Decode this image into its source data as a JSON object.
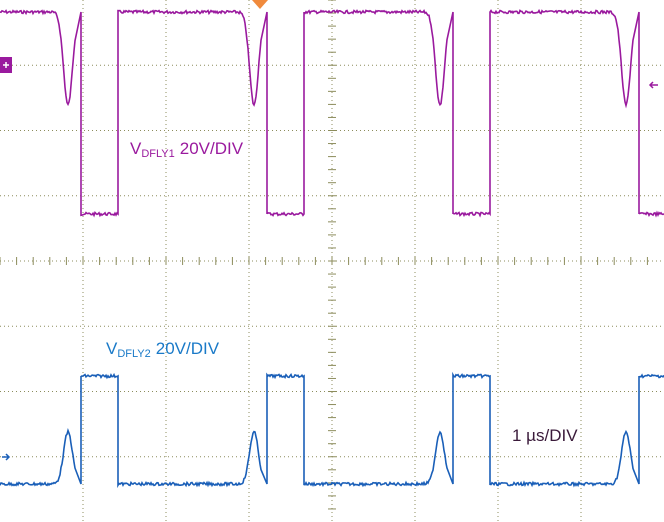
{
  "labels": [
    {
      "main": "V",
      "sub": "DFLY1",
      "rest": "20V/DIV"
    },
    {
      "main": "V",
      "sub": "DFLY2",
      "rest": "20V/DIV"
    },
    {
      "main": "1 µs/DIV"
    }
  ]
}
